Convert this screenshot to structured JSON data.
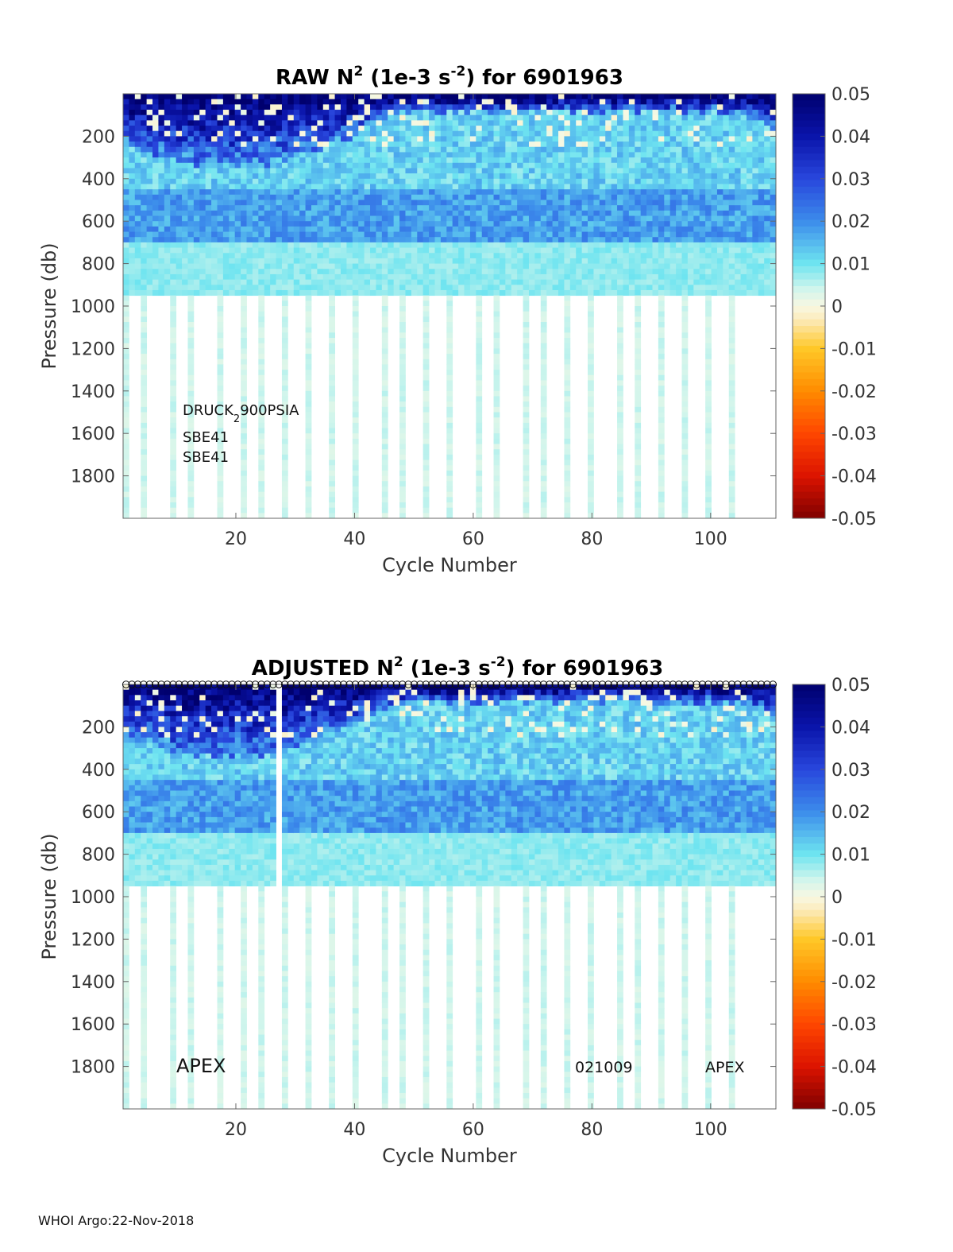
{
  "chart_data": [
    {
      "type": "heatmap",
      "title_main": "RAW N",
      "title_sup1": "2",
      "title_units": " (1e-3 s",
      "title_sup2": "-2",
      "title_tail": ") for 6901963",
      "xlabel": "Cycle Number",
      "ylabel": "Pressure (db)",
      "xlim": [
        1,
        111
      ],
      "ylim": [
        2000,
        0
      ],
      "xticks": [
        "20",
        "40",
        "60",
        "80",
        "100"
      ],
      "xtick_values": [
        20,
        40,
        60,
        80,
        100
      ],
      "yticks": [
        "200",
        "400",
        "600",
        "800",
        "1000",
        "1200",
        "1400",
        "1600",
        "1800"
      ],
      "ytick_values": [
        200,
        400,
        600,
        800,
        1000,
        1200,
        1400,
        1600,
        1800
      ],
      "colorbar": {
        "min": -0.05,
        "max": 0.05,
        "ticks": [
          "0.05",
          "0.04",
          "0.03",
          "0.02",
          "0.01",
          "0",
          "-0.01",
          "-0.02",
          "-0.03",
          "-0.04",
          "-0.05"
        ],
        "tick_values": [
          0.05,
          0.04,
          0.03,
          0.02,
          0.01,
          0,
          -0.01,
          -0.02,
          -0.03,
          -0.04,
          -0.05
        ]
      },
      "annotations": [
        "DRUCK",
        "2",
        "900PSIA",
        "SBE41",
        "SBE41"
      ],
      "data_depth_shallow_db": 950,
      "data_depth_deep_db": 2000,
      "deep_profile_cycles": [
        1,
        4,
        9,
        12,
        17,
        21,
        24,
        28,
        32,
        36,
        40,
        45,
        48,
        52,
        56,
        61,
        64,
        69,
        72,
        76,
        80,
        85,
        88,
        92,
        96,
        100,
        104
      ],
      "stratification": [
        {
          "depth_db": 50,
          "n2": 0.045
        },
        {
          "depth_db": 250,
          "n2": 0.02
        },
        {
          "depth_db": 500,
          "n2": 0.018
        },
        {
          "depth_db": 800,
          "n2": 0.008
        },
        {
          "depth_db": 1500,
          "n2": 0.003
        }
      ]
    },
    {
      "type": "heatmap",
      "title_main": "ADJUSTED N",
      "title_sup1": "2",
      "title_units": " (1e-3 s",
      "title_sup2": "-2",
      "title_tail": ") for 6901963",
      "xlabel": "Cycle Number",
      "ylabel": "Pressure (db)",
      "xlim": [
        1,
        111
      ],
      "ylim": [
        2000,
        0
      ],
      "xticks": [
        "20",
        "40",
        "60",
        "80",
        "100"
      ],
      "xtick_values": [
        20,
        40,
        60,
        80,
        100
      ],
      "yticks": [
        "200",
        "400",
        "600",
        "800",
        "1000",
        "1200",
        "1400",
        "1600",
        "1800"
      ],
      "ytick_values": [
        200,
        400,
        600,
        800,
        1000,
        1200,
        1400,
        1600,
        1800
      ],
      "colorbar": {
        "min": -0.05,
        "max": 0.05,
        "ticks": [
          "0.05",
          "0.04",
          "0.03",
          "0.02",
          "0.01",
          "0",
          "-0.01",
          "-0.02",
          "-0.03",
          "-0.04",
          "-0.05"
        ],
        "tick_values": [
          0.05,
          0.04,
          0.03,
          0.02,
          0.01,
          0,
          -0.01,
          -0.02,
          -0.03,
          -0.04,
          -0.05
        ]
      },
      "annotations": [
        "APEX",
        "021009",
        "APEX"
      ],
      "missing_cycles": [
        27
      ],
      "qc_marker_cycles": "all cycles 1-111 flagged with open circles at 0 db",
      "data_depth_shallow_db": 950,
      "data_depth_deep_db": 2000,
      "deep_profile_cycles": [
        1,
        4,
        9,
        12,
        17,
        21,
        24,
        28,
        32,
        36,
        40,
        45,
        48,
        52,
        56,
        61,
        64,
        69,
        72,
        76,
        80,
        85,
        88,
        92,
        96,
        100,
        104
      ],
      "stratification": [
        {
          "depth_db": 50,
          "n2": 0.045
        },
        {
          "depth_db": 250,
          "n2": 0.02
        },
        {
          "depth_db": 500,
          "n2": 0.018
        },
        {
          "depth_db": 800,
          "n2": 0.008
        },
        {
          "depth_db": 1500,
          "n2": 0.003
        }
      ]
    }
  ],
  "footer": "WHOI Argo:22-Nov-2018"
}
